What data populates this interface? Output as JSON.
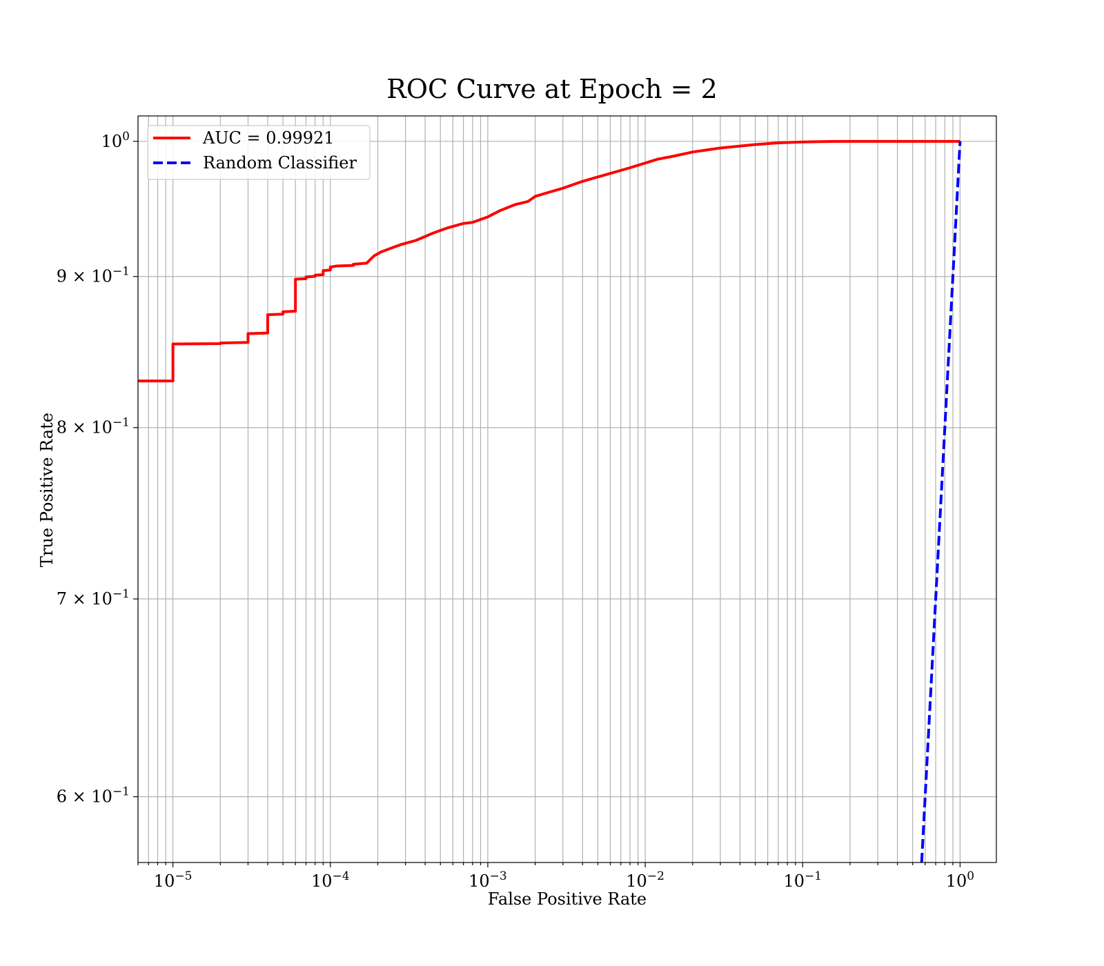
{
  "chart_data": {
    "type": "line",
    "title": "ROC Curve at Epoch = 2",
    "xlabel": "False Positive Rate",
    "ylabel": "True Positive Rate",
    "xscale": "log",
    "yscale": "log",
    "xlim": [
      6e-06,
      1.7
    ],
    "ylim": [
      0.57,
      1.02
    ],
    "grid": "both (major and minor)",
    "legend_position": "top-left",
    "x_tick_labels": [
      {
        "value": 1e-05,
        "base": "10",
        "exp": "−5"
      },
      {
        "value": 0.0001,
        "base": "10",
        "exp": "−4"
      },
      {
        "value": 0.001,
        "base": "10",
        "exp": "−3"
      },
      {
        "value": 0.01,
        "base": "10",
        "exp": "−2"
      },
      {
        "value": 0.1,
        "base": "10",
        "exp": "−1"
      },
      {
        "value": 1,
        "base": "10",
        "exp": "0"
      }
    ],
    "y_tick_labels": [
      {
        "value": 1.0,
        "mant": "",
        "base": "10",
        "exp": "0"
      },
      {
        "value": 0.9,
        "mant": "9 × ",
        "base": "10",
        "exp": "−1"
      },
      {
        "value": 0.8,
        "mant": "8 × ",
        "base": "10",
        "exp": "−1"
      },
      {
        "value": 0.7,
        "mant": "7 × ",
        "base": "10",
        "exp": "−1"
      },
      {
        "value": 0.6,
        "mant": "6 × ",
        "base": "10",
        "exp": "−1"
      }
    ],
    "series": [
      {
        "name": "AUC = 0.99921",
        "color": "#ff0000",
        "style": "solid",
        "x": [
          6e-06,
          1e-05,
          1e-05,
          2e-05,
          2e-05,
          3e-05,
          3e-05,
          4e-05,
          4e-05,
          5e-05,
          5e-05,
          6e-05,
          6e-05,
          7e-05,
          7e-05,
          8e-05,
          8e-05,
          9e-05,
          9e-05,
          0.0001,
          0.0001,
          0.00011,
          0.00014,
          0.00014,
          0.00017,
          0.00019,
          0.00021,
          0.00025,
          0.00028,
          0.00035,
          0.00045,
          0.00055,
          0.0007,
          0.0008,
          0.001,
          0.0012,
          0.0015,
          0.0018,
          0.002,
          0.0025,
          0.003,
          0.004,
          0.005,
          0.006,
          0.008,
          0.01,
          0.012,
          0.015,
          0.02,
          0.03,
          0.05,
          0.07,
          0.1,
          0.15,
          0.2,
          0.3,
          0.5,
          1.0
        ],
        "y": [
          0.8296,
          0.8296,
          0.8539,
          0.8541,
          0.8545,
          0.8549,
          0.8608,
          0.8612,
          0.8736,
          0.874,
          0.8756,
          0.876,
          0.8981,
          0.8985,
          0.8997,
          0.9001,
          0.9009,
          0.9013,
          0.9041,
          0.9046,
          0.9066,
          0.9074,
          0.9078,
          0.9086,
          0.9094,
          0.9147,
          0.9174,
          0.9206,
          0.9226,
          0.9257,
          0.931,
          0.9346,
          0.938,
          0.9388,
          0.9428,
          0.9475,
          0.952,
          0.9542,
          0.958,
          0.9614,
          0.9641,
          0.9693,
          0.9726,
          0.9753,
          0.9796,
          0.9832,
          0.9862,
          0.9884,
          0.9917,
          0.9948,
          0.9975,
          0.9988,
          0.9995,
          0.9999,
          1.0,
          1.0,
          1.0,
          1.0
        ]
      },
      {
        "name": "Random Classifier",
        "color": "#0000ff",
        "style": "dashed",
        "x": [
          0.57,
          0.6,
          0.7,
          0.8,
          0.9,
          1.0
        ],
        "y": [
          0.57,
          0.6,
          0.7,
          0.8,
          0.9,
          1.0
        ]
      }
    ]
  }
}
